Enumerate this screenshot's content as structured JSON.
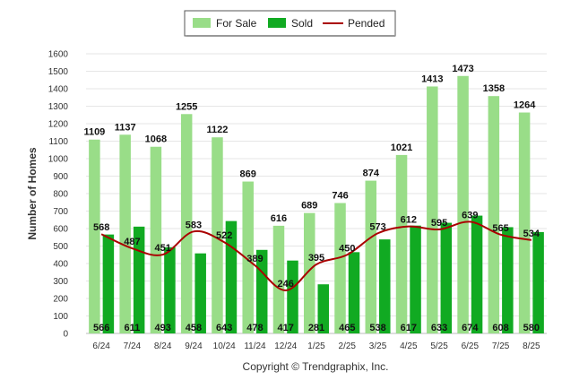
{
  "chart_data": {
    "type": "bar",
    "ylabel": "Number of Homes",
    "ylim": [
      0,
      1600
    ],
    "yticks": [
      0,
      100,
      200,
      300,
      400,
      500,
      600,
      700,
      800,
      900,
      1000,
      1100,
      1200,
      1300,
      1400,
      1500,
      1600
    ],
    "grid": true,
    "legend_position": "top-center",
    "categories": [
      "6/24",
      "7/24",
      "8/24",
      "9/24",
      "10/24",
      "11/24",
      "12/24",
      "1/25",
      "2/25",
      "3/25",
      "4/25",
      "5/25",
      "6/25",
      "7/25",
      "8/25"
    ],
    "series": [
      {
        "name": "For Sale",
        "kind": "bar",
        "color": "#99dd88",
        "values": [
          1109,
          1137,
          1068,
          1255,
          1122,
          869,
          616,
          689,
          746,
          874,
          1021,
          1413,
          1473,
          1358,
          1264
        ]
      },
      {
        "name": "Sold",
        "kind": "bar",
        "color": "#11aa22",
        "values": [
          566,
          611,
          493,
          458,
          643,
          478,
          417,
          281,
          465,
          538,
          617,
          633,
          674,
          608,
          580
        ]
      },
      {
        "name": "Pended",
        "kind": "line",
        "color": "#aa0000",
        "values": [
          568,
          487,
          451,
          583,
          522,
          389,
          246,
          395,
          450,
          573,
          612,
          595,
          639,
          565,
          534
        ]
      }
    ]
  },
  "footer": {
    "copyright": "Copyright © Trendgraphix, Inc."
  }
}
